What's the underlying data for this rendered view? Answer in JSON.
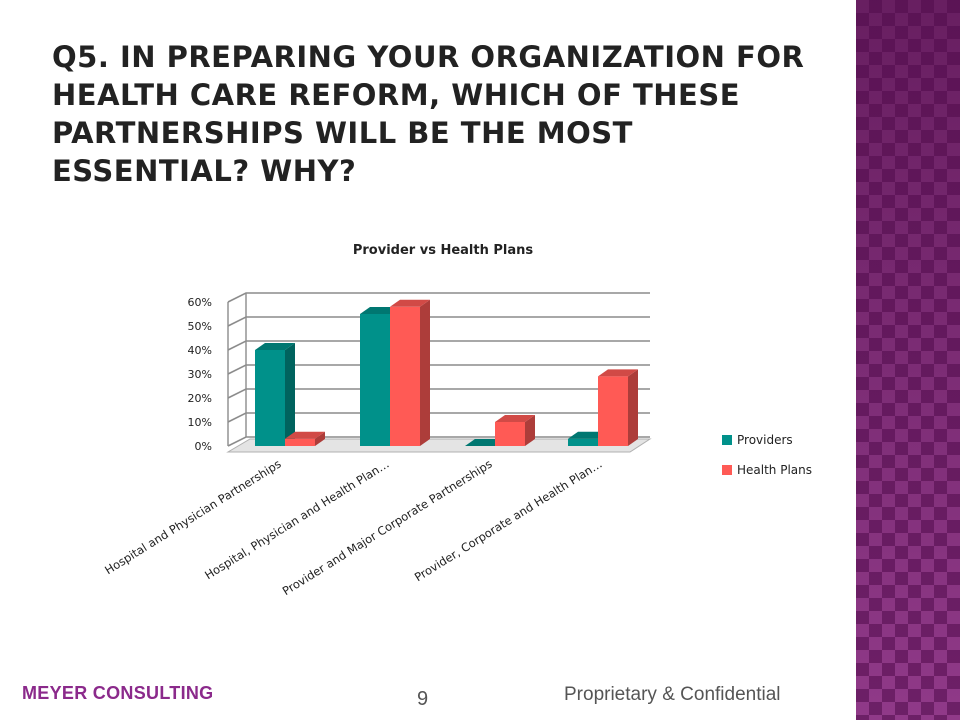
{
  "slide": {
    "title": "Q5.  In preparing your organization for health care reform, which of these partnerships will be the most essential? Why?",
    "footer_left": "MEYER CONSULTING",
    "page_number": "9",
    "footer_right": "Proprietary & Confidential"
  },
  "colors": {
    "providers": "#00918a",
    "health_plans": "#ff5a55",
    "title_text": "#222222",
    "footer_brand": "#8b2a8b",
    "side_panel": "#8a2f82"
  },
  "chart_data": {
    "type": "bar",
    "title": "Provider vs Health Plans",
    "categories": [
      "Hospital and Physician Partnerships",
      "Hospital, Physician and Health Plan…",
      "Provider and Major Corporate Partnerships",
      "Provider, Corporate and Health Plan…"
    ],
    "series": [
      {
        "name": "Providers",
        "values": [
          40,
          55,
          0,
          3
        ]
      },
      {
        "name": "Health Plans",
        "values": [
          3,
          58,
          10,
          29
        ]
      }
    ],
    "ylim": [
      0,
      60
    ],
    "yticks": [
      "0%",
      "10%",
      "20%",
      "30%",
      "40%",
      "50%",
      "60%"
    ],
    "grid": true,
    "legend_position": "right",
    "style": "3d"
  }
}
